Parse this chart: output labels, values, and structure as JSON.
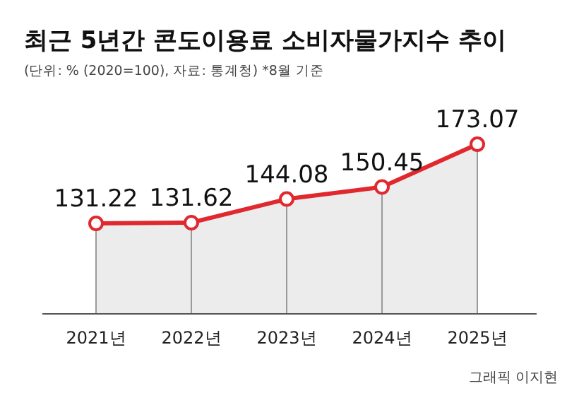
{
  "chart_data": {
    "type": "area",
    "title": "최근 5년간 콘도이용료 소비자물가지수 추이",
    "subtitle": "(단위: % (2020=100), 자료: 통계청)  *8월 기준",
    "categories": [
      "2021년",
      "2022년",
      "2023년",
      "2024년",
      "2025년"
    ],
    "series": [
      {
        "color": "#e0282e",
        "values": [
          131.22,
          131.62,
          144.08,
          150.45,
          173.07
        ]
      }
    ],
    "relative": false,
    "data_labels": true,
    "marker": "circle",
    "annotations": [
      "그래픽 이지현"
    ]
  }
}
